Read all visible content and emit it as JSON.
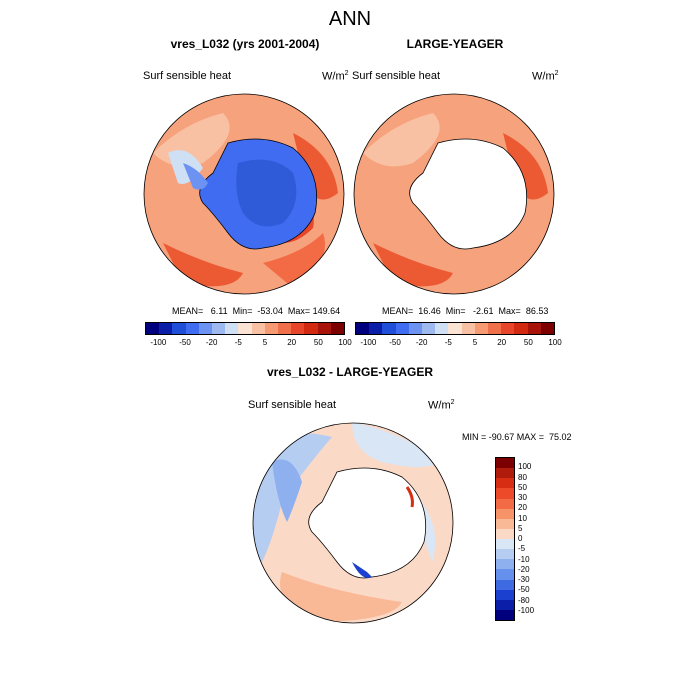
{
  "main_title": "ANN",
  "panels": [
    {
      "title": "vres_L032 (yrs 2001-2004)",
      "variable": "Surf sensible heat",
      "unit_base": "W/m",
      "unit_exp": "2",
      "stats": "MEAN=   6.11  Min=  -53.04  Max= 149.64"
    },
    {
      "title": "LARGE-YEAGER",
      "variable": "Surf sensible heat",
      "unit_base": "W/m",
      "unit_exp": "2",
      "stats": "MEAN=  16.46  Min=   -2.61  Max=  86.53"
    }
  ],
  "diff_panel": {
    "title": "vres_L032 - LARGE-YEAGER",
    "variable": "Surf sensible heat",
    "unit_base": "W/m",
    "unit_exp": "2",
    "stats": "MIN = -90.67 MAX =  75.02"
  },
  "colorbar_top": {
    "labels": [
      "-100",
      "-50",
      "-20",
      "-5",
      "5",
      "20",
      "50",
      "100"
    ],
    "colors": [
      "#00007f",
      "#0a1ea8",
      "#1f4fd8",
      "#3f6cf0",
      "#6d93f2",
      "#9db9f0",
      "#cfe0f5",
      "#fbe3d4",
      "#f9c1a3",
      "#f69a74",
      "#f0704b",
      "#e8462a",
      "#d22a10",
      "#a8130a",
      "#7d0000"
    ]
  },
  "colorbar_diff": {
    "labels": [
      "100",
      "80",
      "50",
      "30",
      "20",
      "10",
      "5",
      "0",
      "-5",
      "-10",
      "-20",
      "-30",
      "-50",
      "-80",
      "-100"
    ],
    "colors": [
      "#7d0000",
      "#b01c0c",
      "#d72d12",
      "#ec4a28",
      "#f36b45",
      "#f79369",
      "#f9b997",
      "#fbd9c7",
      "#d9e6f5",
      "#b5cdf1",
      "#8fb0ef",
      "#6590ec",
      "#3e6ae2",
      "#1b3fce",
      "#0a1ea8",
      "#00007f"
    ]
  }
}
